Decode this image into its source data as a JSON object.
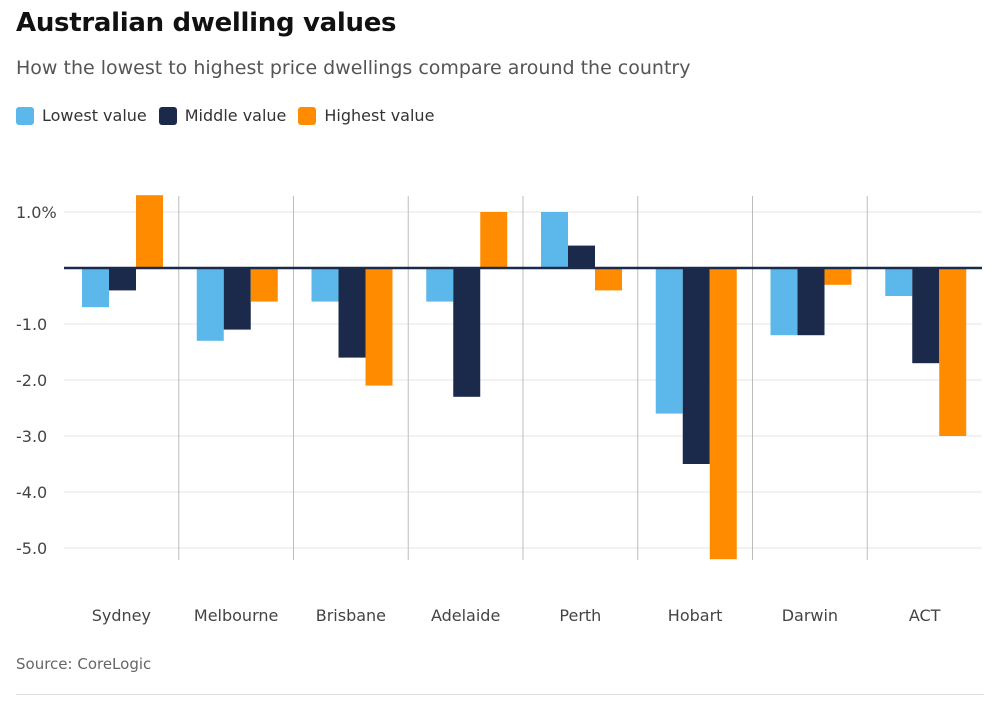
{
  "header": {
    "title": "Australian dwelling values",
    "subtitle": "How the lowest to highest price dwellings compare around the country"
  },
  "legend": [
    {
      "label": "Lowest value",
      "color": "#5cb8ea"
    },
    {
      "label": "Middle value",
      "color": "#1b2a4a"
    },
    {
      "label": "Highest value",
      "color": "#ff8c00"
    }
  ],
  "footer": {
    "source": "Source: CoreLogic"
  },
  "chart_data": {
    "type": "bar",
    "categories": [
      "Sydney",
      "Melbourne",
      "Brisbane",
      "Adelaide",
      "Perth",
      "Hobart",
      "Darwin",
      "ACT"
    ],
    "series": [
      {
        "name": "Lowest value",
        "color": "#5cb8ea",
        "values": [
          -0.7,
          -1.3,
          -0.6,
          -0.6,
          1.0,
          -2.6,
          -1.2,
          -0.5
        ]
      },
      {
        "name": "Middle value",
        "color": "#1b2a4a",
        "values": [
          -0.4,
          -1.1,
          -1.6,
          -2.3,
          0.4,
          -3.5,
          -1.2,
          -1.7
        ]
      },
      {
        "name": "Highest value",
        "color": "#ff8c00",
        "values": [
          1.3,
          -0.6,
          -2.1,
          1.0,
          -0.4,
          -5.2,
          -0.3,
          -3.0
        ]
      }
    ],
    "yticks": [
      1.0,
      -1.0,
      -2.0,
      -3.0,
      -4.0,
      -5.0
    ],
    "ytick_labels": [
      "1.0%",
      "-1.0",
      "-2.0",
      "-3.0",
      "-4.0",
      "-5.0"
    ],
    "ylim": [
      -5.2,
      1.3
    ],
    "grid": true,
    "legend_position": "top-left"
  }
}
